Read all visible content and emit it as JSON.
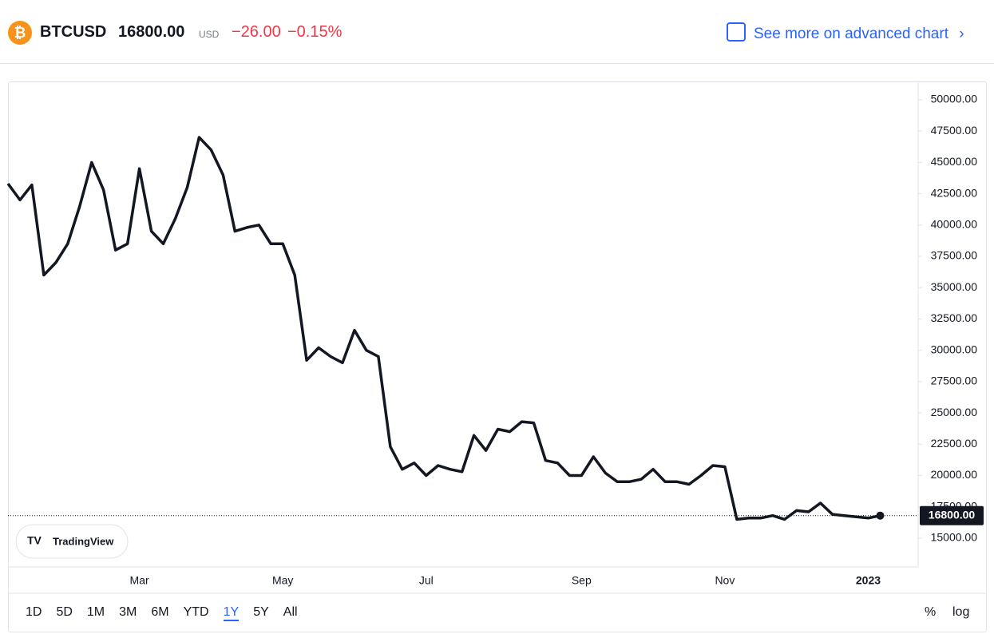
{
  "header": {
    "symbol": "BTCUSD",
    "price": "16800.00",
    "currency": "USD",
    "change": "−26.00",
    "change_percent": "−0.15%",
    "link": "See more on advanced chart"
  },
  "logo": "TradingView",
  "ranges": [
    "1D",
    "5D",
    "1M",
    "3M",
    "6M",
    "YTD",
    "1Y",
    "5Y",
    "All"
  ],
  "active_range": 6,
  "options": [
    "%",
    "log"
  ],
  "chart_data": {
    "type": "line",
    "color": "#131722",
    "categories": [
      null,
      null,
      null,
      null,
      null,
      null,
      null,
      null,
      null,
      null,
      null,
      "Mar",
      null,
      null,
      null,
      null,
      null,
      null,
      null,
      null,
      null,
      null,
      null,
      "May",
      null,
      null,
      null,
      null,
      null,
      null,
      null,
      null,
      null,
      null,
      null,
      "Jul",
      null,
      null,
      null,
      null,
      null,
      null,
      null,
      null,
      null,
      null,
      null,
      null,
      "Sep",
      null,
      null,
      null,
      null,
      null,
      null,
      null,
      null,
      null,
      null,
      null,
      "Nov",
      null,
      null,
      null,
      null,
      null,
      null,
      null,
      null,
      null,
      null,
      null,
      "2023",
      null
    ],
    "values": [
      43300,
      42000,
      43200,
      36000,
      37000,
      38500,
      41500,
      45000,
      42800,
      38000,
      38500,
      44500,
      39500,
      38500,
      40500,
      43000,
      47000,
      46000,
      44000,
      39500,
      39800,
      40000,
      38500,
      38500,
      36000,
      29200,
      30200,
      29500,
      29000,
      31600,
      30000,
      29500,
      22300,
      20500,
      21000,
      20000,
      20800,
      20500,
      20300,
      23200,
      22000,
      23700,
      23500,
      24300,
      24200,
      21200,
      21000,
      20000,
      20000,
      21500,
      20200,
      19500,
      19500,
      19700,
      20500,
      19500,
      19500,
      19300,
      20000,
      20800,
      20700,
      16500,
      16600,
      16600,
      16800,
      16500,
      17200,
      17100,
      17800,
      16900,
      16800,
      16700,
      16600,
      16800
    ],
    "last_label": "16800.00",
    "ylim": [
      12700,
      51400
    ],
    "yticks": [
      {
        "value": 15000,
        "label": "15000.00"
      },
      {
        "value": 17500,
        "label": "17500.00"
      },
      {
        "value": 20000,
        "label": "20000.00"
      },
      {
        "value": 22500,
        "label": "22500.00"
      },
      {
        "value": 25000,
        "label": "25000.00"
      },
      {
        "value": 27500,
        "label": "27500.00"
      },
      {
        "value": 30000,
        "label": "30000.00"
      },
      {
        "value": 32500,
        "label": "32500.00"
      },
      {
        "value": 35000,
        "label": "35000.00"
      },
      {
        "value": 37500,
        "label": "37500.00"
      },
      {
        "value": 40000,
        "label": "40000.00"
      },
      {
        "value": 42500,
        "label": "42500.00"
      },
      {
        "value": 45000,
        "label": "45000.00"
      },
      {
        "value": 47500,
        "label": "47500.00"
      },
      {
        "value": 50000,
        "label": "50000.00"
      }
    ]
  }
}
